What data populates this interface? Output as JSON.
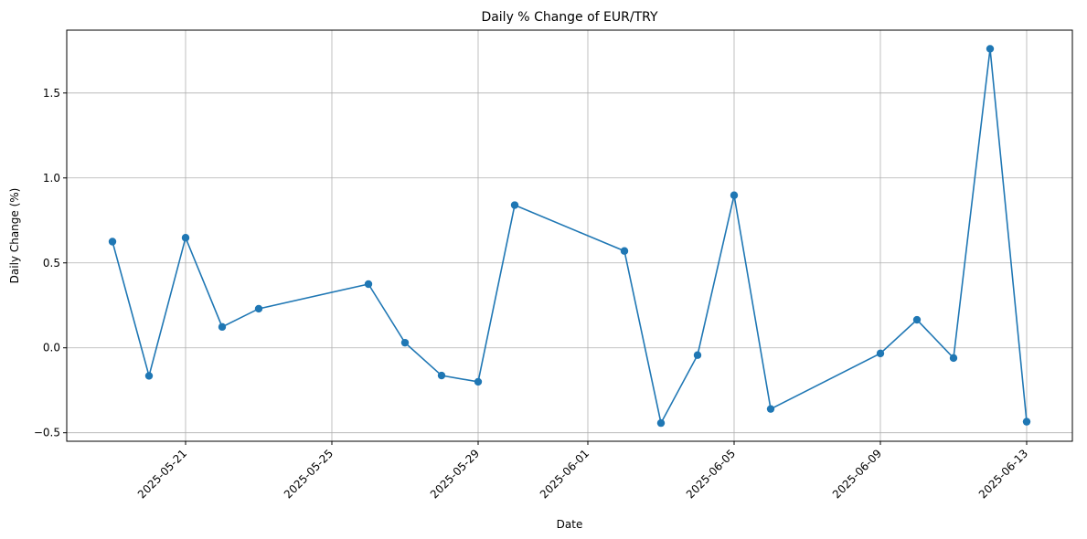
{
  "chart_data": {
    "type": "line",
    "title": "Daily % Change of EUR/TRY",
    "xlabel": "Date",
    "ylabel": "Daily Change (%)",
    "grid": true,
    "xlim": [
      "2025-05-18",
      "2025-06-13"
    ],
    "ylim": [
      -0.55,
      1.87
    ],
    "x_ticks": [
      "2025-05-21",
      "2025-05-25",
      "2025-05-29",
      "2025-06-01",
      "2025-06-05",
      "2025-06-09",
      "2025-06-13"
    ],
    "y_ticks": [
      "−0.5",
      "0.0",
      "0.5",
      "1.0",
      "1.5"
    ],
    "y_tick_values": [
      -0.5,
      0.0,
      0.5,
      1.0,
      1.5
    ],
    "series_color": "#1f77b4",
    "points": [
      {
        "x": "2025-05-19",
        "y": 0.625
      },
      {
        "x": "2025-05-20",
        "y": -0.165
      },
      {
        "x": "2025-05-21",
        "y": 0.648
      },
      {
        "x": "2025-05-22",
        "y": 0.123
      },
      {
        "x": "2025-05-23",
        "y": 0.23
      },
      {
        "x": "2025-05-26",
        "y": 0.375
      },
      {
        "x": "2025-05-27",
        "y": 0.03
      },
      {
        "x": "2025-05-28",
        "y": -0.163
      },
      {
        "x": "2025-05-29",
        "y": -0.2
      },
      {
        "x": "2025-05-30",
        "y": 0.84
      },
      {
        "x": "2025-06-02",
        "y": 0.57
      },
      {
        "x": "2025-06-03",
        "y": -0.443
      },
      {
        "x": "2025-06-04",
        "y": -0.043
      },
      {
        "x": "2025-06-05",
        "y": 0.898
      },
      {
        "x": "2025-06-06",
        "y": -0.36
      },
      {
        "x": "2025-06-09",
        "y": -0.033
      },
      {
        "x": "2025-06-10",
        "y": 0.165
      },
      {
        "x": "2025-06-11",
        "y": -0.06
      },
      {
        "x": "2025-06-12",
        "y": 1.76
      },
      {
        "x": "2025-06-13",
        "y": -0.435
      }
    ]
  }
}
